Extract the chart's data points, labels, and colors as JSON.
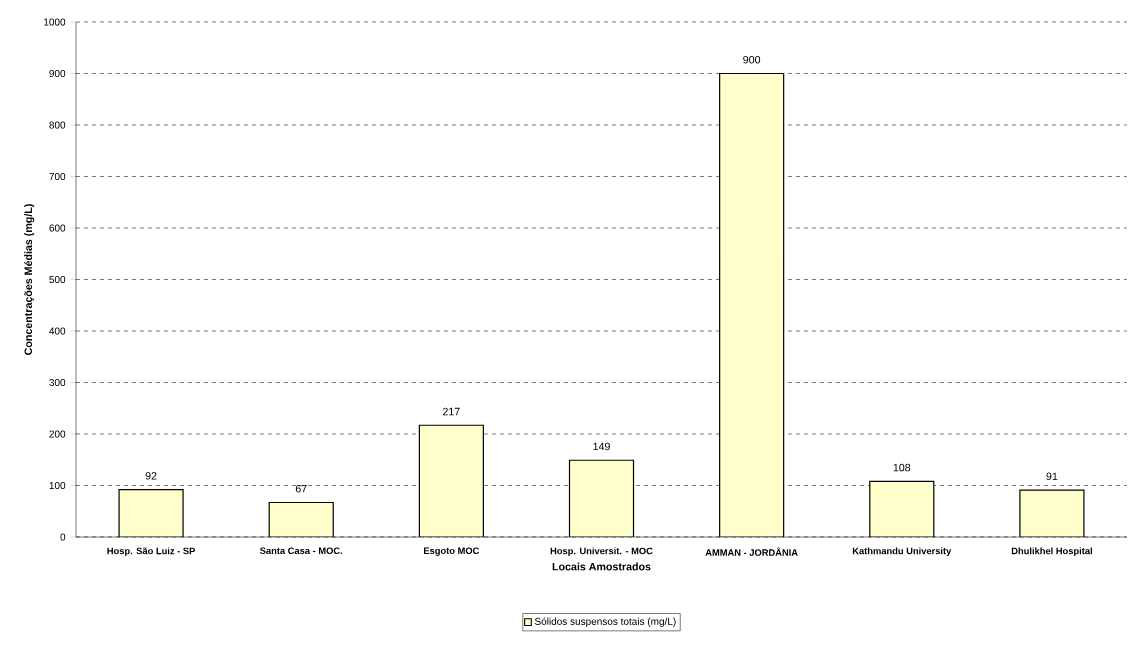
{
  "chart_data": {
    "type": "bar",
    "xlabel": "Locais Amostrados",
    "ylabel": "Concentrações Médias (mg/L)",
    "categories": [
      "Hosp. São Luiz - SP",
      "Santa Casa - MOC.",
      "Esgoto MOC",
      "Hosp. Universit. - MOC",
      "AMMAN - JORDÂNIA",
      "Kathmandu University",
      "Dhulikhel Hospital"
    ],
    "series": [
      {
        "name": "Sólidos suspensos totais (mg/L)",
        "color": "#ffffcc",
        "values": [
          92,
          67,
          217,
          149,
          900,
          108,
          91
        ]
      }
    ],
    "ylim": [
      0,
      1000
    ],
    "yticks": [
      0,
      100,
      200,
      300,
      400,
      500,
      600,
      700,
      800,
      900,
      1000
    ],
    "grid": "y",
    "legend": "bottom",
    "data_labels": true
  }
}
